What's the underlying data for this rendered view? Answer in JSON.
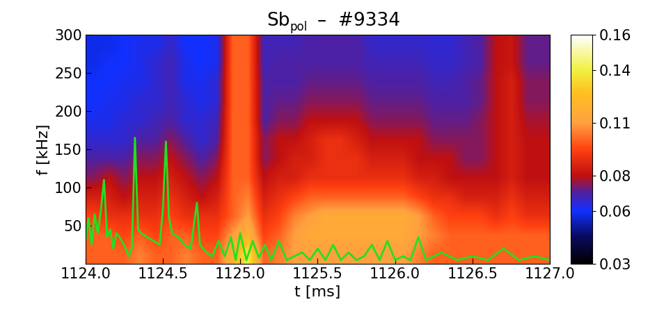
{
  "chart_data": {
    "type": "heatmap",
    "title": "Sb",
    "title_subscript": "pol",
    "title_suffix": "–  #9334",
    "x_label": "t [ms]",
    "y_label": "f [kHz]",
    "xlim": [
      1124.0,
      1127.0
    ],
    "xticks": [
      1124.0,
      1124.5,
      1125.0,
      1125.5,
      1126.0,
      1126.5,
      1127.0
    ],
    "ylim": [
      0,
      300
    ],
    "yticks": [
      50,
      100,
      150,
      200,
      250,
      300
    ],
    "colorbar": {
      "lim": [
        0.03,
        0.16
      ],
      "ticks": [
        0.03,
        0.06,
        0.08,
        0.11,
        0.14,
        0.16
      ]
    },
    "cells": [
      [
        0.1,
        0.1,
        0.1,
        0.105,
        0.1,
        0.1,
        0.105,
        0.1,
        0.1,
        0.12,
        0.14,
        0.1,
        0.105,
        0.11,
        0.11,
        0.11,
        0.11,
        0.11,
        0.11,
        0.11,
        0.11,
        0.105,
        0.1,
        0.1,
        0.1,
        0.1,
        0.1,
        0.1,
        0.1,
        0.1
      ],
      [
        0.1,
        0.1,
        0.095,
        0.1,
        0.095,
        0.1,
        0.1,
        0.095,
        0.095,
        0.11,
        0.12,
        0.095,
        0.1,
        0.11,
        0.115,
        0.115,
        0.115,
        0.115,
        0.115,
        0.115,
        0.115,
        0.11,
        0.105,
        0.1,
        0.1,
        0.1,
        0.1,
        0.1,
        0.1,
        0.1
      ],
      [
        0.095,
        0.09,
        0.09,
        0.09,
        0.09,
        0.095,
        0.09,
        0.09,
        0.09,
        0.1,
        0.11,
        0.09,
        0.095,
        0.105,
        0.11,
        0.115,
        0.115,
        0.115,
        0.115,
        0.115,
        0.115,
        0.11,
        0.1,
        0.095,
        0.095,
        0.095,
        0.09,
        0.095,
        0.09,
        0.09
      ],
      [
        0.085,
        0.085,
        0.08,
        0.085,
        0.085,
        0.09,
        0.085,
        0.08,
        0.085,
        0.1,
        0.105,
        0.085,
        0.09,
        0.095,
        0.1,
        0.1,
        0.1,
        0.1,
        0.1,
        0.1,
        0.1,
        0.095,
        0.09,
        0.09,
        0.085,
        0.085,
        0.085,
        0.09,
        0.085,
        0.085
      ],
      [
        0.075,
        0.08,
        0.075,
        0.08,
        0.08,
        0.085,
        0.08,
        0.075,
        0.08,
        0.1,
        0.1,
        0.08,
        0.085,
        0.085,
        0.09,
        0.09,
        0.09,
        0.09,
        0.09,
        0.09,
        0.09,
        0.085,
        0.085,
        0.08,
        0.08,
        0.08,
        0.08,
        0.085,
        0.08,
        0.08
      ],
      [
        0.07,
        0.07,
        0.07,
        0.075,
        0.075,
        0.08,
        0.075,
        0.07,
        0.075,
        0.1,
        0.1,
        0.075,
        0.08,
        0.085,
        0.085,
        0.09,
        0.09,
        0.09,
        0.085,
        0.085,
        0.085,
        0.08,
        0.08,
        0.08,
        0.075,
        0.075,
        0.08,
        0.085,
        0.08,
        0.08
      ],
      [
        0.065,
        0.065,
        0.065,
        0.07,
        0.07,
        0.075,
        0.07,
        0.065,
        0.07,
        0.1,
        0.1,
        0.075,
        0.08,
        0.08,
        0.085,
        0.09,
        0.09,
        0.085,
        0.08,
        0.08,
        0.08,
        0.08,
        0.075,
        0.075,
        0.075,
        0.075,
        0.08,
        0.085,
        0.08,
        0.08
      ],
      [
        0.062,
        0.062,
        0.065,
        0.065,
        0.068,
        0.07,
        0.065,
        0.065,
        0.068,
        0.1,
        0.1,
        0.07,
        0.075,
        0.075,
        0.08,
        0.08,
        0.08,
        0.08,
        0.075,
        0.075,
        0.075,
        0.075,
        0.072,
        0.072,
        0.072,
        0.075,
        0.08,
        0.085,
        0.078,
        0.078
      ],
      [
        0.06,
        0.062,
        0.062,
        0.065,
        0.065,
        0.068,
        0.065,
        0.062,
        0.065,
        0.1,
        0.1,
        0.07,
        0.072,
        0.072,
        0.075,
        0.075,
        0.075,
        0.075,
        0.072,
        0.072,
        0.072,
        0.072,
        0.07,
        0.07,
        0.07,
        0.072,
        0.08,
        0.085,
        0.075,
        0.075
      ],
      [
        0.06,
        0.06,
        0.062,
        0.062,
        0.065,
        0.068,
        0.062,
        0.062,
        0.065,
        0.1,
        0.1,
        0.07,
        0.07,
        0.07,
        0.072,
        0.072,
        0.072,
        0.072,
        0.07,
        0.07,
        0.07,
        0.07,
        0.068,
        0.068,
        0.07,
        0.072,
        0.08,
        0.085,
        0.075,
        0.075
      ],
      [
        0.058,
        0.06,
        0.06,
        0.062,
        0.065,
        0.068,
        0.062,
        0.06,
        0.062,
        0.1,
        0.1,
        0.068,
        0.07,
        0.07,
        0.07,
        0.07,
        0.07,
        0.07,
        0.068,
        0.068,
        0.068,
        0.068,
        0.066,
        0.066,
        0.068,
        0.07,
        0.08,
        0.082,
        0.072,
        0.072
      ],
      [
        0.058,
        0.058,
        0.06,
        0.062,
        0.062,
        0.066,
        0.06,
        0.06,
        0.062,
        0.1,
        0.1,
        0.068,
        0.068,
        0.068,
        0.07,
        0.07,
        0.07,
        0.07,
        0.066,
        0.066,
        0.066,
        0.066,
        0.065,
        0.065,
        0.068,
        0.07,
        0.08,
        0.082,
        0.072,
        0.072
      ]
    ],
    "line": {
      "color": "#22e022",
      "x": [
        1124.0,
        1124.02,
        1124.04,
        1124.06,
        1124.08,
        1124.1,
        1124.12,
        1124.14,
        1124.16,
        1124.18,
        1124.2,
        1124.22,
        1124.25,
        1124.28,
        1124.3,
        1124.32,
        1124.34,
        1124.36,
        1124.4,
        1124.44,
        1124.48,
        1124.5,
        1124.52,
        1124.54,
        1124.56,
        1124.6,
        1124.64,
        1124.68,
        1124.72,
        1124.74,
        1124.78,
        1124.82,
        1124.86,
        1124.9,
        1124.94,
        1124.97,
        1125.0,
        1125.04,
        1125.08,
        1125.12,
        1125.16,
        1125.2,
        1125.25,
        1125.3,
        1125.35,
        1125.4,
        1125.45,
        1125.5,
        1125.55,
        1125.6,
        1125.65,
        1125.7,
        1125.75,
        1125.8,
        1125.85,
        1125.9,
        1125.95,
        1126.0,
        1126.05,
        1126.1,
        1126.15,
        1126.2,
        1126.3,
        1126.4,
        1126.5,
        1126.6,
        1126.7,
        1126.8,
        1126.9,
        1127.0
      ],
      "values": [
        30,
        60,
        25,
        65,
        40,
        70,
        110,
        35,
        45,
        20,
        40,
        35,
        25,
        10,
        20,
        165,
        45,
        40,
        35,
        30,
        25,
        70,
        160,
        60,
        40,
        35,
        25,
        20,
        80,
        25,
        15,
        10,
        30,
        10,
        35,
        5,
        40,
        5,
        30,
        8,
        25,
        5,
        30,
        5,
        10,
        15,
        5,
        20,
        5,
        25,
        5,
        15,
        5,
        10,
        25,
        5,
        30,
        5,
        10,
        5,
        35,
        5,
        15,
        5,
        10,
        5,
        20,
        5,
        10,
        5
      ]
    }
  }
}
